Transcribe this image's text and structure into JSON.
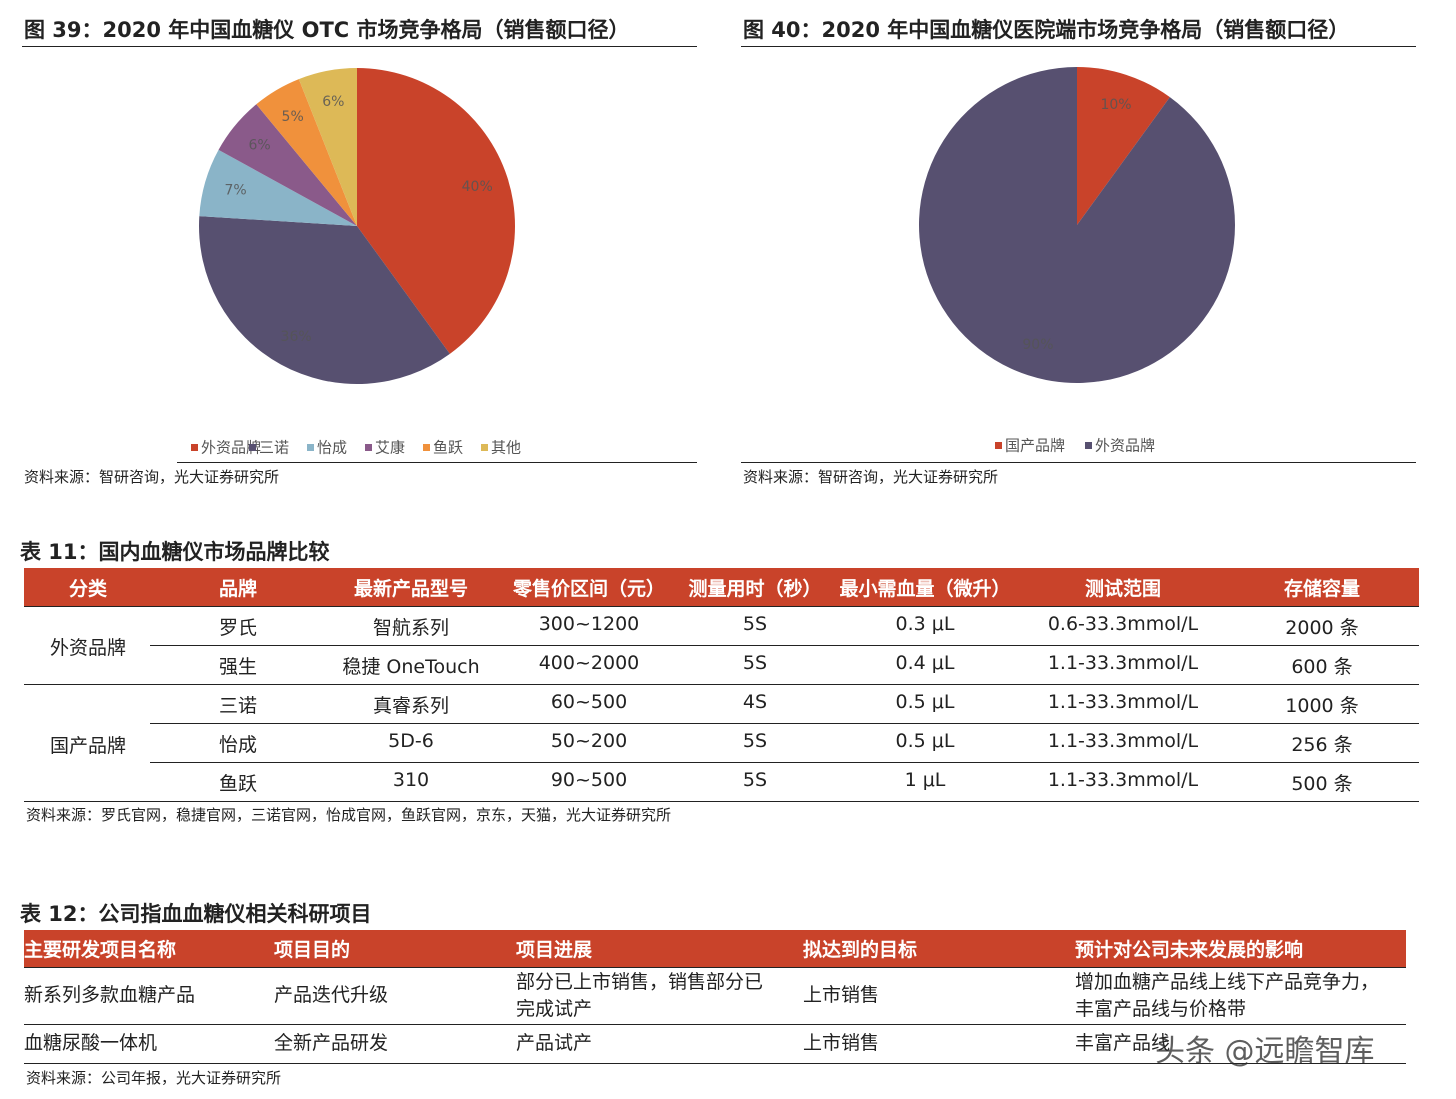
{
  "chart_data": [
    {
      "type": "pie",
      "title": "图 39：2020 年中国血糖仪 OTC 市场竞争格局（销售额口径）",
      "categories": [
        "外资品牌",
        "三诺",
        "怡成",
        "艾康",
        "鱼跃",
        "其他"
      ],
      "values": [
        40,
        36,
        7,
        6,
        5,
        6
      ],
      "value_labels": [
        "40%",
        "36%",
        "7%",
        "6%",
        "5%",
        "6%"
      ],
      "colors": [
        "#c9432a",
        "#575070",
        "#8ab4c8",
        "#8a5a8a",
        "#f0913c",
        "#ddb957"
      ],
      "source": "资料来源：智研咨询，光大证券研究所"
    },
    {
      "type": "pie",
      "title": "图 40：2020 年中国血糖仪医院端市场竞争格局（销售额口径）",
      "categories": [
        "国产品牌",
        "外资品牌"
      ],
      "values": [
        10,
        90
      ],
      "value_labels": [
        "10%",
        "90%"
      ],
      "colors": [
        "#c9432a",
        "#575070"
      ],
      "source": "资料来源：智研咨询，光大证券研究所"
    }
  ],
  "table11": {
    "title": "表 11：国内血糖仪市场品牌比较",
    "header": [
      "分类",
      "品牌",
      "最新产品型号",
      "零售价区间（元）",
      "测量用时（秒）",
      "最小需血量（微升）",
      "测试范围",
      "存储容量"
    ],
    "groups": [
      {
        "name": "外资品牌",
        "rows": [
          [
            "罗氏",
            "智航系列",
            "300~1200",
            "5S",
            "0.3  μL",
            "0.6-33.3mmol/L",
            "2000 条"
          ],
          [
            "强生",
            "稳捷 OneTouch",
            "400~2000",
            "5S",
            "0.4 μL",
            "1.1-33.3mmol/L",
            "600 条"
          ]
        ]
      },
      {
        "name": "国产品牌",
        "rows": [
          [
            "三诺",
            "真睿系列",
            "60~500",
            "4S",
            "0.5 μL",
            "1.1-33.3mmol/L",
            "1000 条"
          ],
          [
            "怡成",
            "5D-6",
            "50~200",
            "5S",
            "0.5 μL",
            "1.1-33.3mmol/L",
            "256 条"
          ],
          [
            "鱼跃",
            "310",
            "90~500",
            "5S",
            "1 μL",
            "1.1-33.3mmol/L",
            "500 条"
          ]
        ]
      }
    ],
    "source": "资料来源：罗氏官网，稳捷官网，三诺官网，怡成官网，鱼跃官网，京东，天猫，光大证券研究所"
  },
  "table12": {
    "title": "表 12：公司指血血糖仪相关科研项目",
    "header": [
      "主要研发项目名称",
      "项目目的",
      "项目进展",
      "拟达到的目标",
      "预计对公司未来发展的影响"
    ],
    "rows": [
      [
        "新系列多款血糖产品",
        "产品迭代升级",
        "部分已上市销售，销售部分已完成试产",
        "上市销售",
        "增加血糖产品线上线下产品竞争力，丰富产品线与价格带"
      ],
      [
        "血糖尿酸一体机",
        "全新产品研发",
        "产品试产",
        "上市销售",
        "丰富产品线"
      ]
    ],
    "source": "资料来源：公司年报，光大证券研究所"
  },
  "watermark": "头条 @远瞻智库"
}
